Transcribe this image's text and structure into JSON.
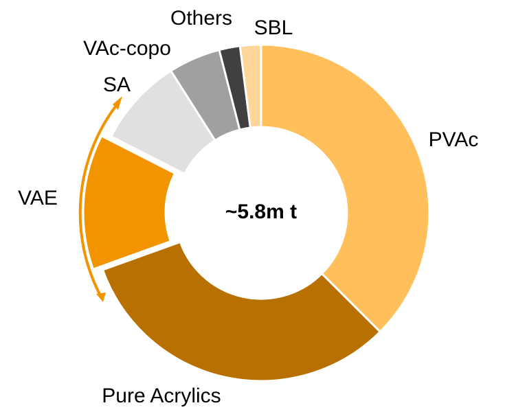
{
  "chart_data": {
    "type": "pie",
    "center_label": "~5.8m t",
    "categories": [
      "PVAc",
      "Pure Acrylics",
      "VAE",
      "SA",
      "VAc-copo",
      "Others",
      "SBL"
    ],
    "values": [
      37.5,
      32,
      13,
      8.5,
      5,
      2,
      2
    ],
    "colors": [
      "#FFC05C",
      "#B87000",
      "#F29400",
      "#E0E0E0",
      "#A0A0A0",
      "#404040",
      "#FFD699"
    ],
    "exploded": [
      "VAE"
    ]
  }
}
